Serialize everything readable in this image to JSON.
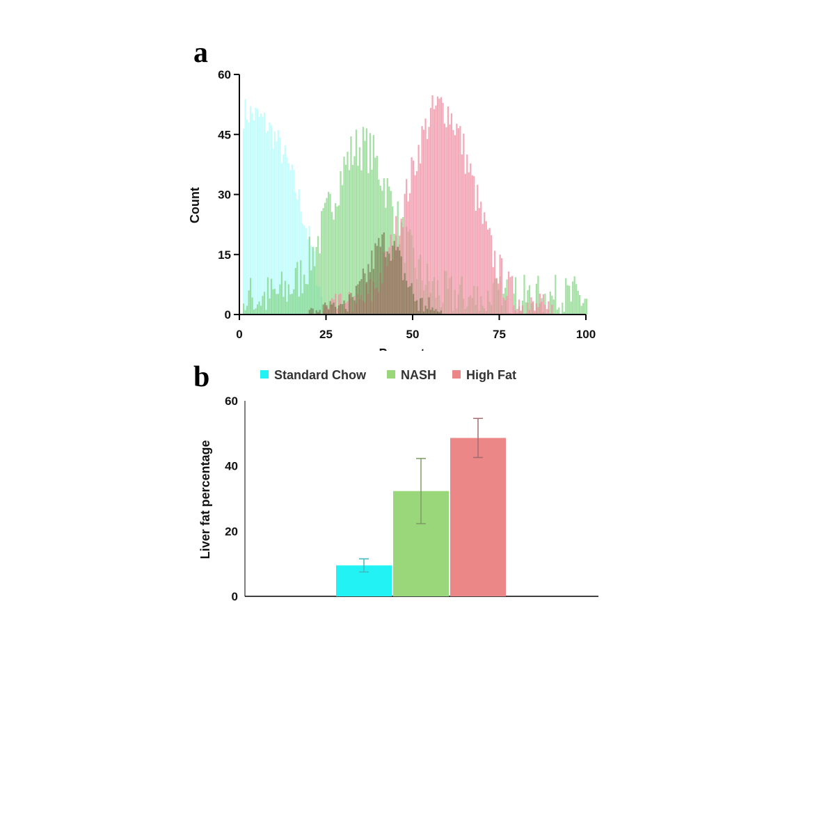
{
  "panels": {
    "a": "a",
    "b": "b"
  },
  "colors": {
    "standard_chow": "#9ffbfb",
    "nash": "#74cf74",
    "high_fat": "#ef8ca0",
    "bar_standard_chow": "#22f2f4",
    "bar_nash": "#99d77a",
    "bar_high_fat": "#eb8786",
    "err_standard_chow": "#3fb8bd",
    "err_nash": "#7d9a64",
    "err_high_fat": "#a36b72"
  },
  "chart_data": [
    {
      "type": "bar",
      "subtype": "overlaid-histogram",
      "title": "",
      "xlabel": "Percentage",
      "ylabel": "Count",
      "xlim": [
        0,
        100
      ],
      "ylim": [
        0,
        60
      ],
      "x_ticks": [
        "0",
        "25",
        "50",
        "75",
        "100"
      ],
      "y_ticks": [
        "0",
        "15",
        "30",
        "45",
        "60"
      ],
      "bin_width": 0.5,
      "series": [
        {
          "key": "standard_chow",
          "gen": {
            "shape": "decay",
            "start": 1,
            "end": 24,
            "peak": 51,
            "noise": 4
          }
        },
        {
          "key": "nash",
          "gen": {
            "shape": "gauss",
            "start": 1,
            "end": 100,
            "mean": 35,
            "sd": 9,
            "peak": 38,
            "base": 4,
            "noise": 6
          }
        },
        {
          "key": "high_fat",
          "gen": {
            "shape": "gauss",
            "start": 24,
            "end": 90,
            "mean": 58,
            "sd": 9.5,
            "peak": 52,
            "noise": 5
          }
        },
        {
          "key": "overlap",
          "gen": {
            "shape": "gauss",
            "start": 20,
            "end": 58,
            "mean": 42,
            "sd": 5,
            "peak": 18,
            "noise": 4
          }
        }
      ]
    },
    {
      "type": "bar",
      "title": "",
      "xlabel": "",
      "ylabel": "Liver fat percentage",
      "ylim": [
        0,
        60
      ],
      "y_ticks": [
        "0",
        "20",
        "40",
        "60"
      ],
      "legend_position": "top",
      "series": [
        {
          "key": "standard_chow",
          "name": "Standard Chow",
          "value": 9.5,
          "error": 2.0
        },
        {
          "key": "nash",
          "name": "NASH",
          "value": 32.3,
          "error": 10.0
        },
        {
          "key": "high_fat",
          "name": "High Fat",
          "value": 48.6,
          "error": 6.0
        }
      ]
    }
  ]
}
